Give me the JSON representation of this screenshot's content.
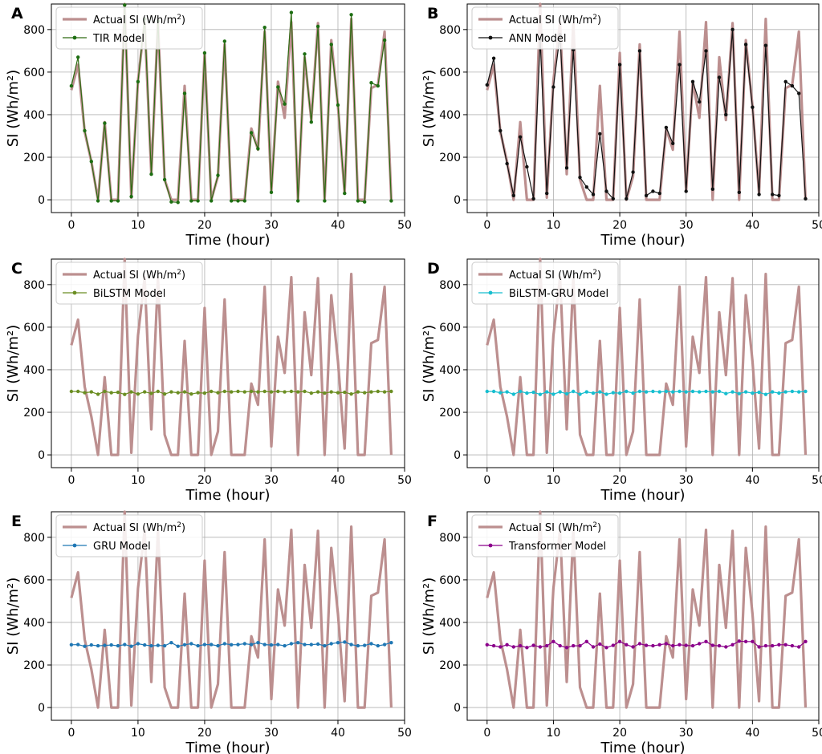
{
  "figure": {
    "actual_color": "#bc8f8f",
    "grid_color": "#b0b0b0"
  },
  "chart_data": [
    {
      "panel_label": "A",
      "type": "line",
      "xlabel": "Time (hour)",
      "ylabel": "SI (Wh/m²)",
      "xlim": [
        -3,
        50
      ],
      "ylim": [
        -60,
        920
      ],
      "xticks": [
        "0",
        "10",
        "20",
        "30",
        "40",
        "50"
      ],
      "yticks": [
        "0",
        "200",
        "400",
        "600",
        "800"
      ],
      "legend_location": "upper-left",
      "grid": true,
      "x": [
        0,
        1,
        2,
        3,
        4,
        5,
        6,
        7,
        8,
        9,
        10,
        11,
        12,
        13,
        14,
        15,
        16,
        17,
        18,
        19,
        20,
        21,
        22,
        23,
        24,
        25,
        26,
        27,
        28,
        29,
        30,
        31,
        32,
        33,
        34,
        35,
        36,
        37,
        38,
        39,
        40,
        41,
        42,
        43,
        44,
        45,
        46,
        47,
        48
      ],
      "series": [
        {
          "name": "Actual SI (Wh/m²)",
          "legend_label": "Actual SI (Wh/m",
          "legend_sup": "2",
          "legend_tail": ")",
          "color": "#bc8f8f",
          "style": "thick",
          "values": [
            515,
            635,
            320,
            180,
            0,
            365,
            0,
            0,
            920,
            10,
            560,
            835,
            120,
            835,
            95,
            0,
            0,
            535,
            0,
            0,
            690,
            0,
            110,
            730,
            0,
            0,
            0,
            335,
            235,
            790,
            40,
            555,
            385,
            835,
            0,
            670,
            375,
            830,
            0,
            750,
            440,
            30,
            850,
            0,
            0,
            525,
            540,
            790,
            0
          ]
        },
        {
          "name": "TIR Model",
          "color": "#2e6b12",
          "marker_color": "#1d6e12",
          "style": "marker",
          "values": [
            535,
            670,
            325,
            180,
            -5,
            360,
            -5,
            -5,
            915,
            15,
            555,
            850,
            120,
            840,
            95,
            -10,
            -12,
            500,
            -5,
            -5,
            690,
            -5,
            115,
            745,
            -5,
            -5,
            -5,
            315,
            240,
            810,
            35,
            530,
            450,
            880,
            -5,
            685,
            365,
            815,
            -5,
            730,
            445,
            30,
            870,
            -5,
            -10,
            550,
            535,
            750,
            -5
          ]
        }
      ]
    },
    {
      "panel_label": "B",
      "type": "line",
      "xlabel": "Time (hour)",
      "ylabel": "SI (Wh/m²)",
      "xlim": [
        -3,
        50
      ],
      "ylim": [
        -60,
        920
      ],
      "xticks": [
        "0",
        "10",
        "20",
        "30",
        "40",
        "50"
      ],
      "yticks": [
        "0",
        "200",
        "400",
        "600",
        "800"
      ],
      "legend_location": "upper-left",
      "grid": true,
      "x": [
        0,
        1,
        2,
        3,
        4,
        5,
        6,
        7,
        8,
        9,
        10,
        11,
        12,
        13,
        14,
        15,
        16,
        17,
        18,
        19,
        20,
        21,
        22,
        23,
        24,
        25,
        26,
        27,
        28,
        29,
        30,
        31,
        32,
        33,
        34,
        35,
        36,
        37,
        38,
        39,
        40,
        41,
        42,
        43,
        44,
        45,
        46,
        47,
        48
      ],
      "series": [
        {
          "name": "Actual SI (Wh/m²)",
          "legend_label": "Actual SI (Wh/m",
          "legend_sup": "2",
          "legend_tail": ")",
          "color": "#bc8f8f",
          "style": "thick",
          "values": [
            515,
            635,
            320,
            180,
            0,
            365,
            0,
            0,
            920,
            10,
            560,
            835,
            120,
            835,
            95,
            0,
            0,
            535,
            0,
            0,
            690,
            0,
            110,
            730,
            0,
            0,
            0,
            335,
            235,
            790,
            40,
            555,
            385,
            835,
            0,
            670,
            375,
            830,
            0,
            750,
            440,
            30,
            850,
            0,
            0,
            525,
            540,
            790,
            0
          ]
        },
        {
          "name": "ANN Model",
          "color": "#111111",
          "marker_color": "#111111",
          "style": "marker",
          "values": [
            540,
            665,
            325,
            170,
            20,
            295,
            155,
            5,
            755,
            30,
            530,
            775,
            150,
            705,
            105,
            60,
            25,
            310,
            40,
            5,
            635,
            5,
            130,
            700,
            20,
            40,
            30,
            340,
            265,
            635,
            40,
            555,
            460,
            700,
            50,
            575,
            400,
            800,
            35,
            730,
            435,
            25,
            725,
            25,
            20,
            555,
            535,
            500,
            5
          ]
        }
      ]
    },
    {
      "panel_label": "C",
      "type": "line",
      "xlabel": "Time (hour)",
      "ylabel": "SI (Wh/m²)",
      "xlim": [
        -3,
        50
      ],
      "ylim": [
        -60,
        920
      ],
      "xticks": [
        "0",
        "10",
        "20",
        "30",
        "40",
        "50"
      ],
      "yticks": [
        "0",
        "200",
        "400",
        "600",
        "800"
      ],
      "legend_location": "upper-left",
      "grid": true,
      "x": [
        0,
        1,
        2,
        3,
        4,
        5,
        6,
        7,
        8,
        9,
        10,
        11,
        12,
        13,
        14,
        15,
        16,
        17,
        18,
        19,
        20,
        21,
        22,
        23,
        24,
        25,
        26,
        27,
        28,
        29,
        30,
        31,
        32,
        33,
        34,
        35,
        36,
        37,
        38,
        39,
        40,
        41,
        42,
        43,
        44,
        45,
        46,
        47,
        48
      ],
      "series": [
        {
          "name": "Actual SI (Wh/m²)",
          "legend_label": "Actual SI (Wh/m",
          "legend_sup": "2",
          "legend_tail": ")",
          "color": "#bc8f8f",
          "style": "thick",
          "values": [
            515,
            635,
            320,
            180,
            0,
            365,
            0,
            0,
            920,
            10,
            560,
            835,
            120,
            835,
            95,
            0,
            0,
            535,
            0,
            0,
            690,
            0,
            110,
            730,
            0,
            0,
            0,
            335,
            235,
            790,
            40,
            555,
            385,
            835,
            0,
            670,
            375,
            830,
            0,
            750,
            440,
            30,
            850,
            0,
            0,
            525,
            540,
            790,
            0
          ]
        },
        {
          "name": "BiLSTM Model",
          "color": "#6b8e23",
          "marker_color": "#6b8e23",
          "style": "marker",
          "values": [
            298,
            298,
            292,
            296,
            285,
            298,
            292,
            294,
            284,
            296,
            286,
            296,
            289,
            298,
            286,
            296,
            292,
            296,
            286,
            292,
            290,
            298,
            292,
            298,
            296,
            298,
            296,
            298,
            296,
            298,
            296,
            298,
            296,
            298,
            296,
            298,
            290,
            296,
            290,
            296,
            292,
            294,
            286,
            296,
            292,
            296,
            298,
            296,
            298
          ]
        }
      ]
    },
    {
      "panel_label": "D",
      "type": "line",
      "xlabel": "Time (hour)",
      "ylabel": "SI (Wh/m²)",
      "xlim": [
        -3,
        50
      ],
      "ylim": [
        -60,
        920
      ],
      "xticks": [
        "0",
        "10",
        "20",
        "30",
        "40",
        "50"
      ],
      "yticks": [
        "0",
        "200",
        "400",
        "600",
        "800"
      ],
      "legend_location": "upper-left",
      "grid": true,
      "x": [
        0,
        1,
        2,
        3,
        4,
        5,
        6,
        7,
        8,
        9,
        10,
        11,
        12,
        13,
        14,
        15,
        16,
        17,
        18,
        19,
        20,
        21,
        22,
        23,
        24,
        25,
        26,
        27,
        28,
        29,
        30,
        31,
        32,
        33,
        34,
        35,
        36,
        37,
        38,
        39,
        40,
        41,
        42,
        43,
        44,
        45,
        46,
        47,
        48
      ],
      "series": [
        {
          "name": "Actual SI (Wh/m²)",
          "legend_label": "Actual SI (Wh/m",
          "legend_sup": "2",
          "legend_tail": ")",
          "color": "#bc8f8f",
          "style": "thick",
          "values": [
            515,
            635,
            320,
            180,
            0,
            365,
            0,
            0,
            920,
            10,
            560,
            835,
            120,
            835,
            95,
            0,
            0,
            535,
            0,
            0,
            690,
            0,
            110,
            730,
            0,
            0,
            0,
            335,
            235,
            790,
            40,
            555,
            385,
            835,
            0,
            670,
            375,
            830,
            0,
            750,
            440,
            30,
            850,
            0,
            0,
            525,
            540,
            790,
            0
          ]
        },
        {
          "name": "BiLSTM-GRU Model",
          "color": "#17becf",
          "marker_color": "#17becf",
          "style": "marker",
          "values": [
            298,
            298,
            292,
            296,
            285,
            298,
            290,
            294,
            284,
            296,
            285,
            296,
            287,
            298,
            285,
            296,
            290,
            296,
            285,
            292,
            290,
            298,
            290,
            298,
            296,
            298,
            296,
            298,
            296,
            298,
            296,
            298,
            296,
            298,
            296,
            298,
            288,
            296,
            288,
            296,
            290,
            294,
            284,
            296,
            290,
            296,
            298,
            296,
            298
          ]
        }
      ]
    },
    {
      "panel_label": "E",
      "type": "line",
      "xlabel": "Time (hour)",
      "ylabel": "SI (Wh/m²)",
      "xlim": [
        -3,
        50
      ],
      "ylim": [
        -60,
        920
      ],
      "xticks": [
        "0",
        "10",
        "20",
        "30",
        "40",
        "50"
      ],
      "yticks": [
        "0",
        "200",
        "400",
        "600",
        "800"
      ],
      "legend_location": "upper-left",
      "grid": true,
      "x": [
        0,
        1,
        2,
        3,
        4,
        5,
        6,
        7,
        8,
        9,
        10,
        11,
        12,
        13,
        14,
        15,
        16,
        17,
        18,
        19,
        20,
        21,
        22,
        23,
        24,
        25,
        26,
        27,
        28,
        29,
        30,
        31,
        32,
        33,
        34,
        35,
        36,
        37,
        38,
        39,
        40,
        41,
        42,
        43,
        44,
        45,
        46,
        47,
        48
      ],
      "series": [
        {
          "name": "Actual SI (Wh/m²)",
          "legend_label": "Actual SI (Wh/m",
          "legend_sup": "2",
          "legend_tail": ")",
          "color": "#bc8f8f",
          "style": "thick",
          "values": [
            515,
            635,
            320,
            180,
            0,
            365,
            0,
            0,
            920,
            10,
            560,
            835,
            120,
            835,
            95,
            0,
            0,
            535,
            0,
            0,
            690,
            0,
            110,
            730,
            0,
            0,
            0,
            335,
            235,
            790,
            40,
            555,
            385,
            835,
            0,
            670,
            375,
            830,
            0,
            750,
            440,
            30,
            850,
            0,
            0,
            525,
            540,
            790,
            0
          ]
        },
        {
          "name": "GRU Model",
          "color": "#1f77b4",
          "marker_color": "#1f77b4",
          "style": "marker",
          "values": [
            295,
            296,
            288,
            294,
            290,
            292,
            294,
            290,
            296,
            288,
            300,
            294,
            290,
            292,
            290,
            305,
            288,
            295,
            300,
            290,
            296,
            296,
            290,
            300,
            295,
            296,
            300,
            296,
            305,
            296,
            294,
            296,
            290,
            300,
            305,
            296,
            296,
            298,
            290,
            300,
            305,
            308,
            296,
            290,
            292,
            300,
            290,
            296,
            305
          ]
        }
      ]
    },
    {
      "panel_label": "F",
      "type": "line",
      "xlabel": "Time (hour)",
      "ylabel": "SI (Wh/m²)",
      "xlim": [
        -3,
        50
      ],
      "ylim": [
        -60,
        920
      ],
      "xticks": [
        "0",
        "10",
        "20",
        "30",
        "40",
        "50"
      ],
      "yticks": [
        "0",
        "200",
        "400",
        "600",
        "800"
      ],
      "legend_location": "upper-left",
      "grid": true,
      "x": [
        0,
        1,
        2,
        3,
        4,
        5,
        6,
        7,
        8,
        9,
        10,
        11,
        12,
        13,
        14,
        15,
        16,
        17,
        18,
        19,
        20,
        21,
        22,
        23,
        24,
        25,
        26,
        27,
        28,
        29,
        30,
        31,
        32,
        33,
        34,
        35,
        36,
        37,
        38,
        39,
        40,
        41,
        42,
        43,
        44,
        45,
        46,
        47,
        48
      ],
      "series": [
        {
          "name": "Actual SI (Wh/m²)",
          "legend_label": "Actual SI (Wh/m",
          "legend_sup": "2",
          "legend_tail": ")",
          "color": "#bc8f8f",
          "style": "thick",
          "values": [
            515,
            635,
            320,
            180,
            0,
            365,
            0,
            0,
            920,
            10,
            560,
            835,
            120,
            835,
            95,
            0,
            0,
            535,
            0,
            0,
            690,
            0,
            110,
            730,
            0,
            0,
            0,
            335,
            235,
            790,
            40,
            555,
            385,
            835,
            0,
            670,
            375,
            830,
            0,
            750,
            440,
            30,
            850,
            0,
            0,
            525,
            540,
            790,
            0
          ]
        },
        {
          "name": "Transformer Model",
          "color": "#8b008b",
          "marker_color": "#8b008b",
          "style": "marker",
          "values": [
            295,
            290,
            285,
            295,
            285,
            290,
            282,
            292,
            285,
            290,
            310,
            290,
            282,
            290,
            290,
            310,
            285,
            298,
            282,
            292,
            310,
            295,
            285,
            300,
            292,
            290,
            295,
            300,
            290,
            295,
            292,
            290,
            300,
            310,
            292,
            290,
            285,
            295,
            312,
            310,
            310,
            285,
            290,
            290,
            295,
            295,
            290,
            285,
            310
          ]
        }
      ]
    }
  ]
}
